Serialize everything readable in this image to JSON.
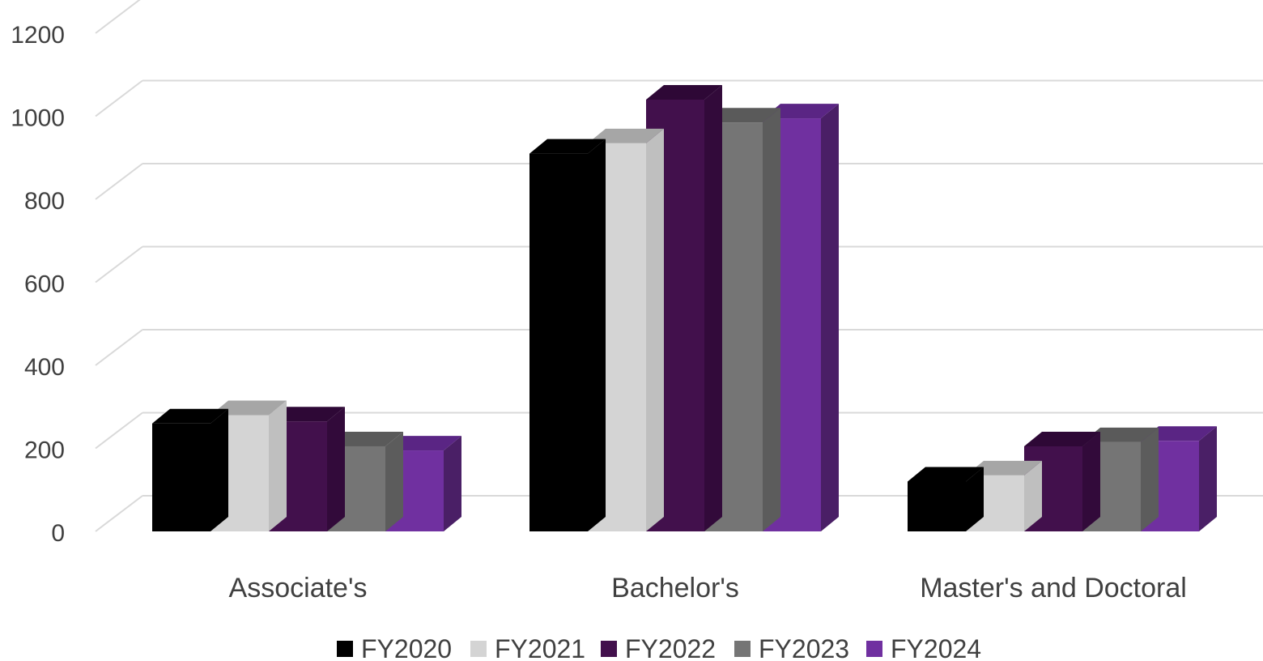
{
  "chart_data": {
    "type": "bar",
    "categories": [
      "Associate's",
      "Bachelor's",
      "Master's and Doctoral"
    ],
    "series": [
      {
        "name": "FY2020",
        "values": [
          260,
          910,
          120
        ],
        "color": "#000000",
        "side_color": "#000000",
        "top_color": "#000000"
      },
      {
        "name": "FY2021",
        "values": [
          280,
          935,
          135
        ],
        "color": "#d4d4d4",
        "side_color": "#bfbfbf",
        "top_color": "#a6a6a6"
      },
      {
        "name": "FY2022",
        "values": [
          265,
          1040,
          205
        ],
        "color": "#42104c",
        "side_color": "#320a3a",
        "top_color": "#2e0836"
      },
      {
        "name": "FY2023",
        "values": [
          205,
          985,
          215
        ],
        "color": "#757575",
        "side_color": "#5c5c5c",
        "top_color": "#5a5a5a"
      },
      {
        "name": "FY2024",
        "values": [
          195,
          995,
          218
        ],
        "color": "#7030a0",
        "side_color": "#4a1f66",
        "top_color": "#5a2584"
      }
    ],
    "y_ticks": [
      "0",
      "200",
      "400",
      "600",
      "800",
      "1000",
      "1200"
    ],
    "ylim": [
      0,
      1200
    ],
    "grid": true,
    "legend_position": "bottom"
  }
}
